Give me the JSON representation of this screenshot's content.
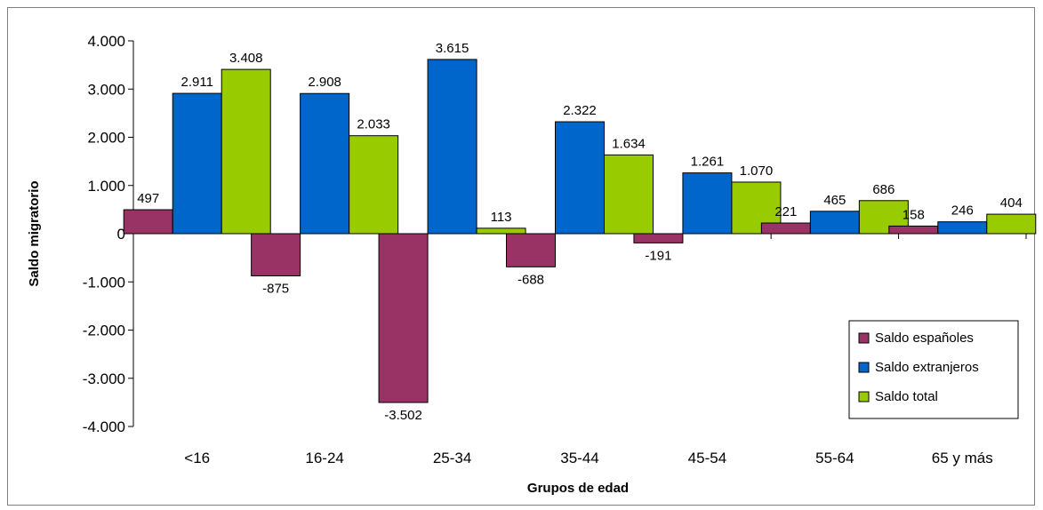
{
  "chart_data": {
    "type": "bar",
    "title": "",
    "xlabel": "Grupos de edad",
    "ylabel": "Saldo migratorio",
    "categories": [
      "<16",
      "16-24",
      "25-34",
      "35-44",
      "45-54",
      "55-64",
      "65 y más"
    ],
    "series": [
      {
        "name": "Saldo españoles",
        "color": "#993366",
        "values": [
          497,
          -875,
          -3502,
          -688,
          -191,
          221,
          158
        ],
        "labels": [
          "497",
          "-875",
          "-3.502",
          "-688",
          "-191",
          "221",
          "158"
        ]
      },
      {
        "name": "Saldo extranjeros",
        "color": "#0066CC",
        "values": [
          2911,
          2908,
          3615,
          2322,
          1261,
          465,
          246
        ],
        "labels": [
          "2.911",
          "2.908",
          "3.615",
          "2.322",
          "1.261",
          "465",
          "246"
        ]
      },
      {
        "name": "Saldo total",
        "color": "#99CC00",
        "values": [
          3408,
          2033,
          113,
          1634,
          1070,
          686,
          404
        ],
        "labels": [
          "3.408",
          "2.033",
          "113",
          "1.634",
          "1.070",
          "686",
          "404"
        ]
      }
    ],
    "ylim": [
      -4000,
      4000
    ],
    "yticks": [
      -4000,
      -3000,
      -2000,
      -1000,
      0,
      1000,
      2000,
      3000,
      4000
    ],
    "ytick_labels": [
      "-4.000",
      "-3.000",
      "-2.000",
      "-1.000",
      "0",
      "1.000",
      "2.000",
      "3.000",
      "4.000"
    ],
    "grid": false,
    "legend_position": "bottom-right"
  }
}
